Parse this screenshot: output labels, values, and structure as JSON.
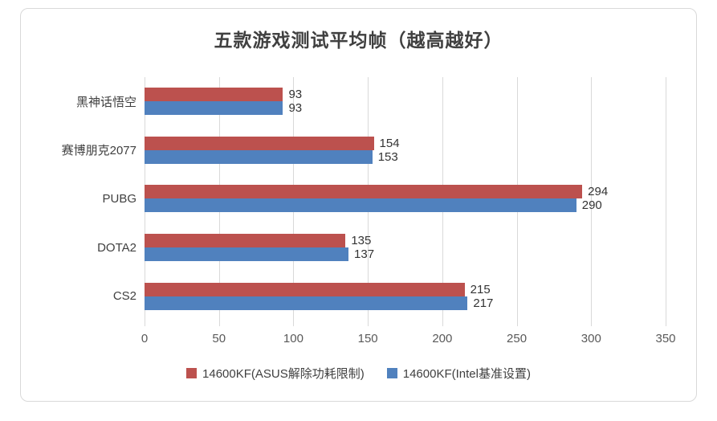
{
  "frame": {
    "background": "#ffffff",
    "border_color": "#d9d9d9"
  },
  "chart_data": {
    "type": "bar",
    "orientation": "horizontal",
    "title": "五款游戏测试平均帧（越高越好）",
    "categories": [
      "黑神话悟空",
      "赛博朋克2077",
      "PUBG",
      "DOTA2",
      "CS2"
    ],
    "series": [
      {
        "name": "14600KF(ASUS解除功耗限制)",
        "color": "#bc514e",
        "values": [
          93,
          154,
          294,
          135,
          215
        ]
      },
      {
        "name": "14600KF(Intel基准设置)",
        "color": "#5081be",
        "values": [
          93,
          153,
          290,
          137,
          217
        ]
      }
    ],
    "xlim": [
      0,
      350
    ],
    "x_ticks": [
      0,
      50,
      100,
      150,
      200,
      250,
      300,
      350
    ],
    "grid": "vertical",
    "gridline_color": "#d9d9d9",
    "legend_position": "bottom",
    "data_labels": true,
    "title_color": "#404040",
    "label_color": "#333333",
    "tick_label_color": "#595959"
  }
}
